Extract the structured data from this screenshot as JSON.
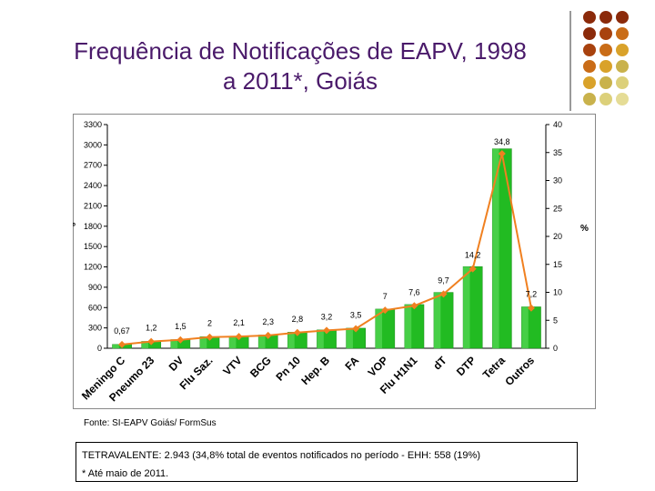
{
  "title_line1": "Frequência de Notificações de EAPV, 1998",
  "title_line2": "a 2011*, Goiás",
  "decor": {
    "colors": [
      "#8b2a0a",
      "#a8420e",
      "#c96c17",
      "#d9a22a",
      "#c9b24c",
      "#dcd07a",
      "#e5dc96"
    ]
  },
  "source": "Fonte: SI-EAPV Goiás/ FormSus",
  "note_line1": "TETRAVALENTE: 2.943 (34,8% total de eventos notificados no período - EHH: 558 (19%)",
  "note_line2": "* Até maio de 2011.",
  "chart_data": {
    "type": "bar",
    "ylabel": "Nº",
    "y2label": "%",
    "ylim": [
      0,
      3300
    ],
    "y2lim": [
      0,
      40
    ],
    "yticks": [
      "0",
      "300",
      "600",
      "900",
      "1200",
      "1500",
      "1800",
      "2100",
      "2400",
      "2700",
      "3000",
      "3300"
    ],
    "y2ticks": [
      "0",
      "5",
      "10",
      "15",
      "20",
      "25",
      "30",
      "35",
      "40"
    ],
    "categories": [
      "Meningo C",
      "Pneumo 23",
      "DV",
      "Flu Saz.",
      "VTV",
      "BCG",
      "Pn 10",
      "Hep. B",
      "FA",
      "VOP",
      "Flu H1N1",
      "dT",
      "DTP",
      "Tetra",
      "Outros"
    ],
    "series": [
      {
        "type": "bar",
        "color": "#22bb22",
        "values": [
          57,
          101,
          127,
          170,
          178,
          195,
          237,
          271,
          296,
          578,
          645,
          824,
          1205,
          2943,
          611
        ]
      },
      {
        "type": "line",
        "color": "#f08020",
        "values": [
          0.67,
          1.2,
          1.5,
          2,
          2.1,
          2.3,
          2.8,
          3.2,
          3.5,
          6.8,
          7.6,
          9.7,
          14.2,
          34.8,
          7.2
        ]
      }
    ],
    "data_labels": [
      "0,67",
      "1,2",
      "1,5",
      "2",
      "2,1",
      "2,3",
      "2,8",
      "3,2",
      "3,5",
      "7",
      "7,6",
      "9,7",
      "14,2",
      "34,8",
      "7,2"
    ],
    "grid": false
  }
}
